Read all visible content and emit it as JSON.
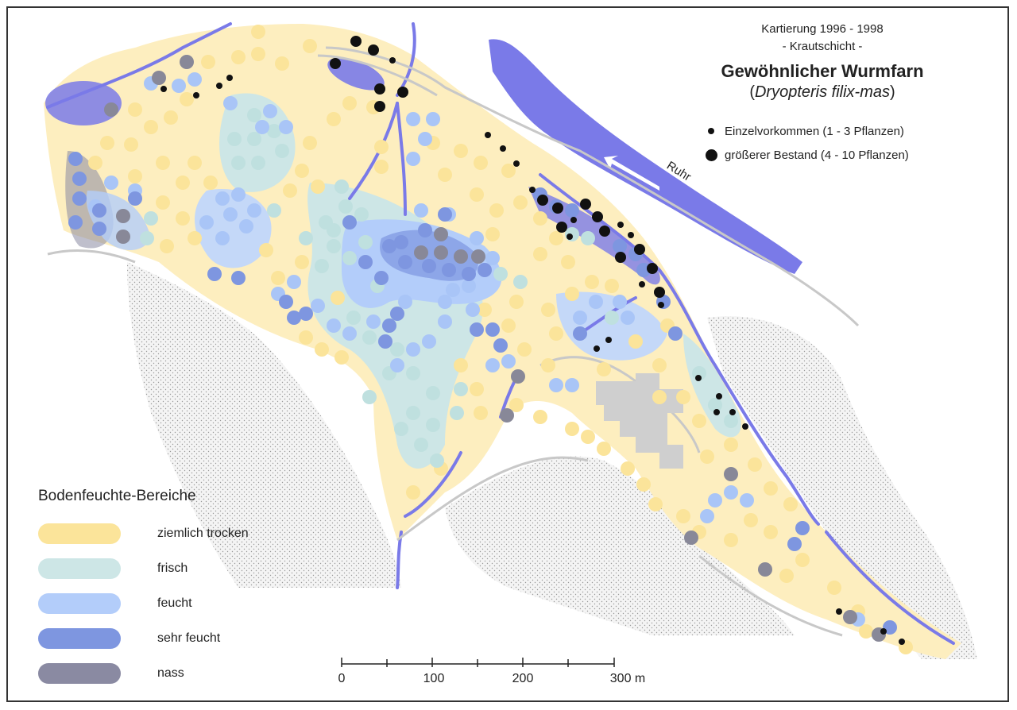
{
  "map": {
    "title_line1": "Kartierung 1996 - 1998",
    "title_line2": "- Krautschicht -",
    "species_name": "Gewöhnlicher Wurmfarn",
    "latin_prefix": "(",
    "latin_name": "Dryopteris filix-mas",
    "latin_suffix": ")",
    "river_label": "Ruhr"
  },
  "symbol_legend": [
    {
      "icon": "small-black-dot-icon",
      "label": "Einzelvorkommen (1 - 3 Pflanzen)"
    },
    {
      "icon": "large-black-dot-icon",
      "label": "größerer Bestand (4 - 10 Pflanzen)"
    }
  ],
  "moisture_legend": {
    "title": "Bodenfeuchte-Bereiche",
    "items": [
      {
        "label": "ziemlich trocken",
        "color": "#fbe49a"
      },
      {
        "label": "frisch",
        "color": "#cde6e6"
      },
      {
        "label": "feucht",
        "color": "#b3cdfa"
      },
      {
        "label": "sehr feucht",
        "color": "#7e96e0"
      },
      {
        "label": "nass",
        "color": "#8a8aa2"
      }
    ]
  },
  "scale_bar": {
    "labels": [
      "0",
      "100",
      "200",
      "300 m"
    ]
  },
  "colors": {
    "water": "#7a7ae8",
    "dry_zone": "#fdeebf",
    "building": "#cfcfcf",
    "road": "#bdbdbd",
    "occurrence": "#111111"
  }
}
